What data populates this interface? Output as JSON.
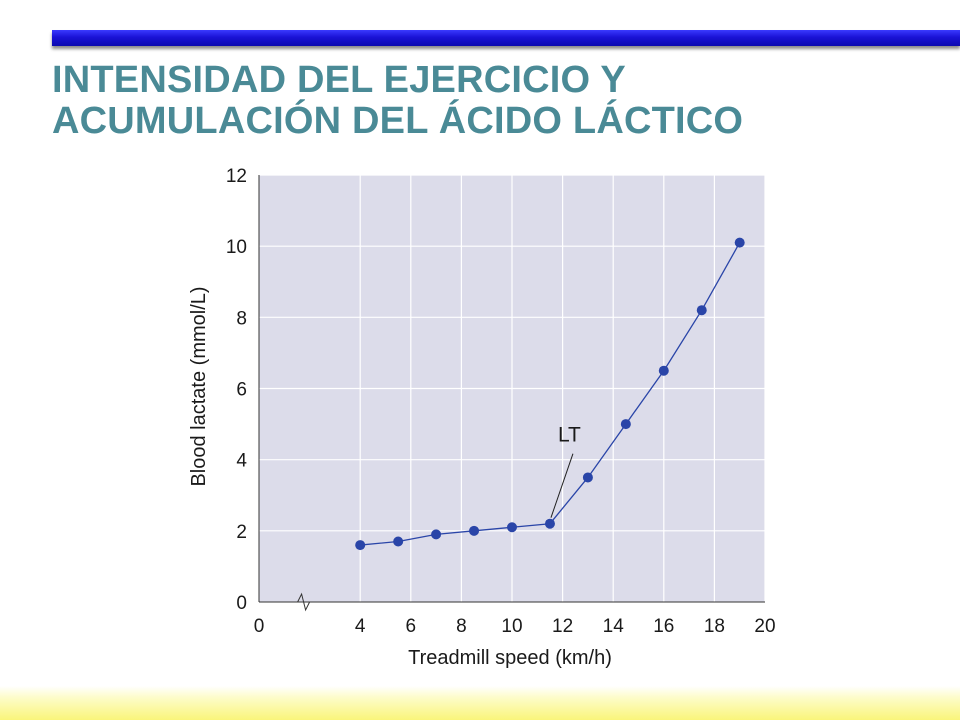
{
  "slide": {
    "title_line1": "INTENSIDAD DEL EJERCICIO Y",
    "title_line2": "ACUMULACIÓN DEL ÁCIDO LÁCTICO",
    "title_color": "#4a8a96",
    "top_bar_color": "#1a12d6",
    "bottom_bar_color": "#faf57a"
  },
  "chart_data": {
    "type": "line",
    "title": "",
    "xlabel": "Treadmill speed (km/h)",
    "ylabel": "Blood lactate (mmol/L)",
    "xlim": [
      0,
      20
    ],
    "ylim": [
      0,
      12
    ],
    "x_ticks": [
      0,
      4,
      6,
      8,
      10,
      12,
      14,
      16,
      18,
      20
    ],
    "y_ticks": [
      0,
      2,
      4,
      6,
      8,
      10,
      12
    ],
    "x_axis_break": true,
    "grid": true,
    "plot_background": "#dcdcea",
    "series": [
      {
        "color": "#2a45a8",
        "x": [
          4,
          5.5,
          7,
          8.5,
          10,
          11.5,
          13,
          14.5,
          16,
          17.5,
          19
        ],
        "y": [
          1.6,
          1.7,
          1.9,
          2.0,
          2.1,
          2.2,
          3.5,
          5.0,
          6.5,
          8.2,
          10.1
        ]
      }
    ],
    "annotations": [
      {
        "text": "LT",
        "x": 11.5,
        "y": 2.2
      }
    ]
  }
}
